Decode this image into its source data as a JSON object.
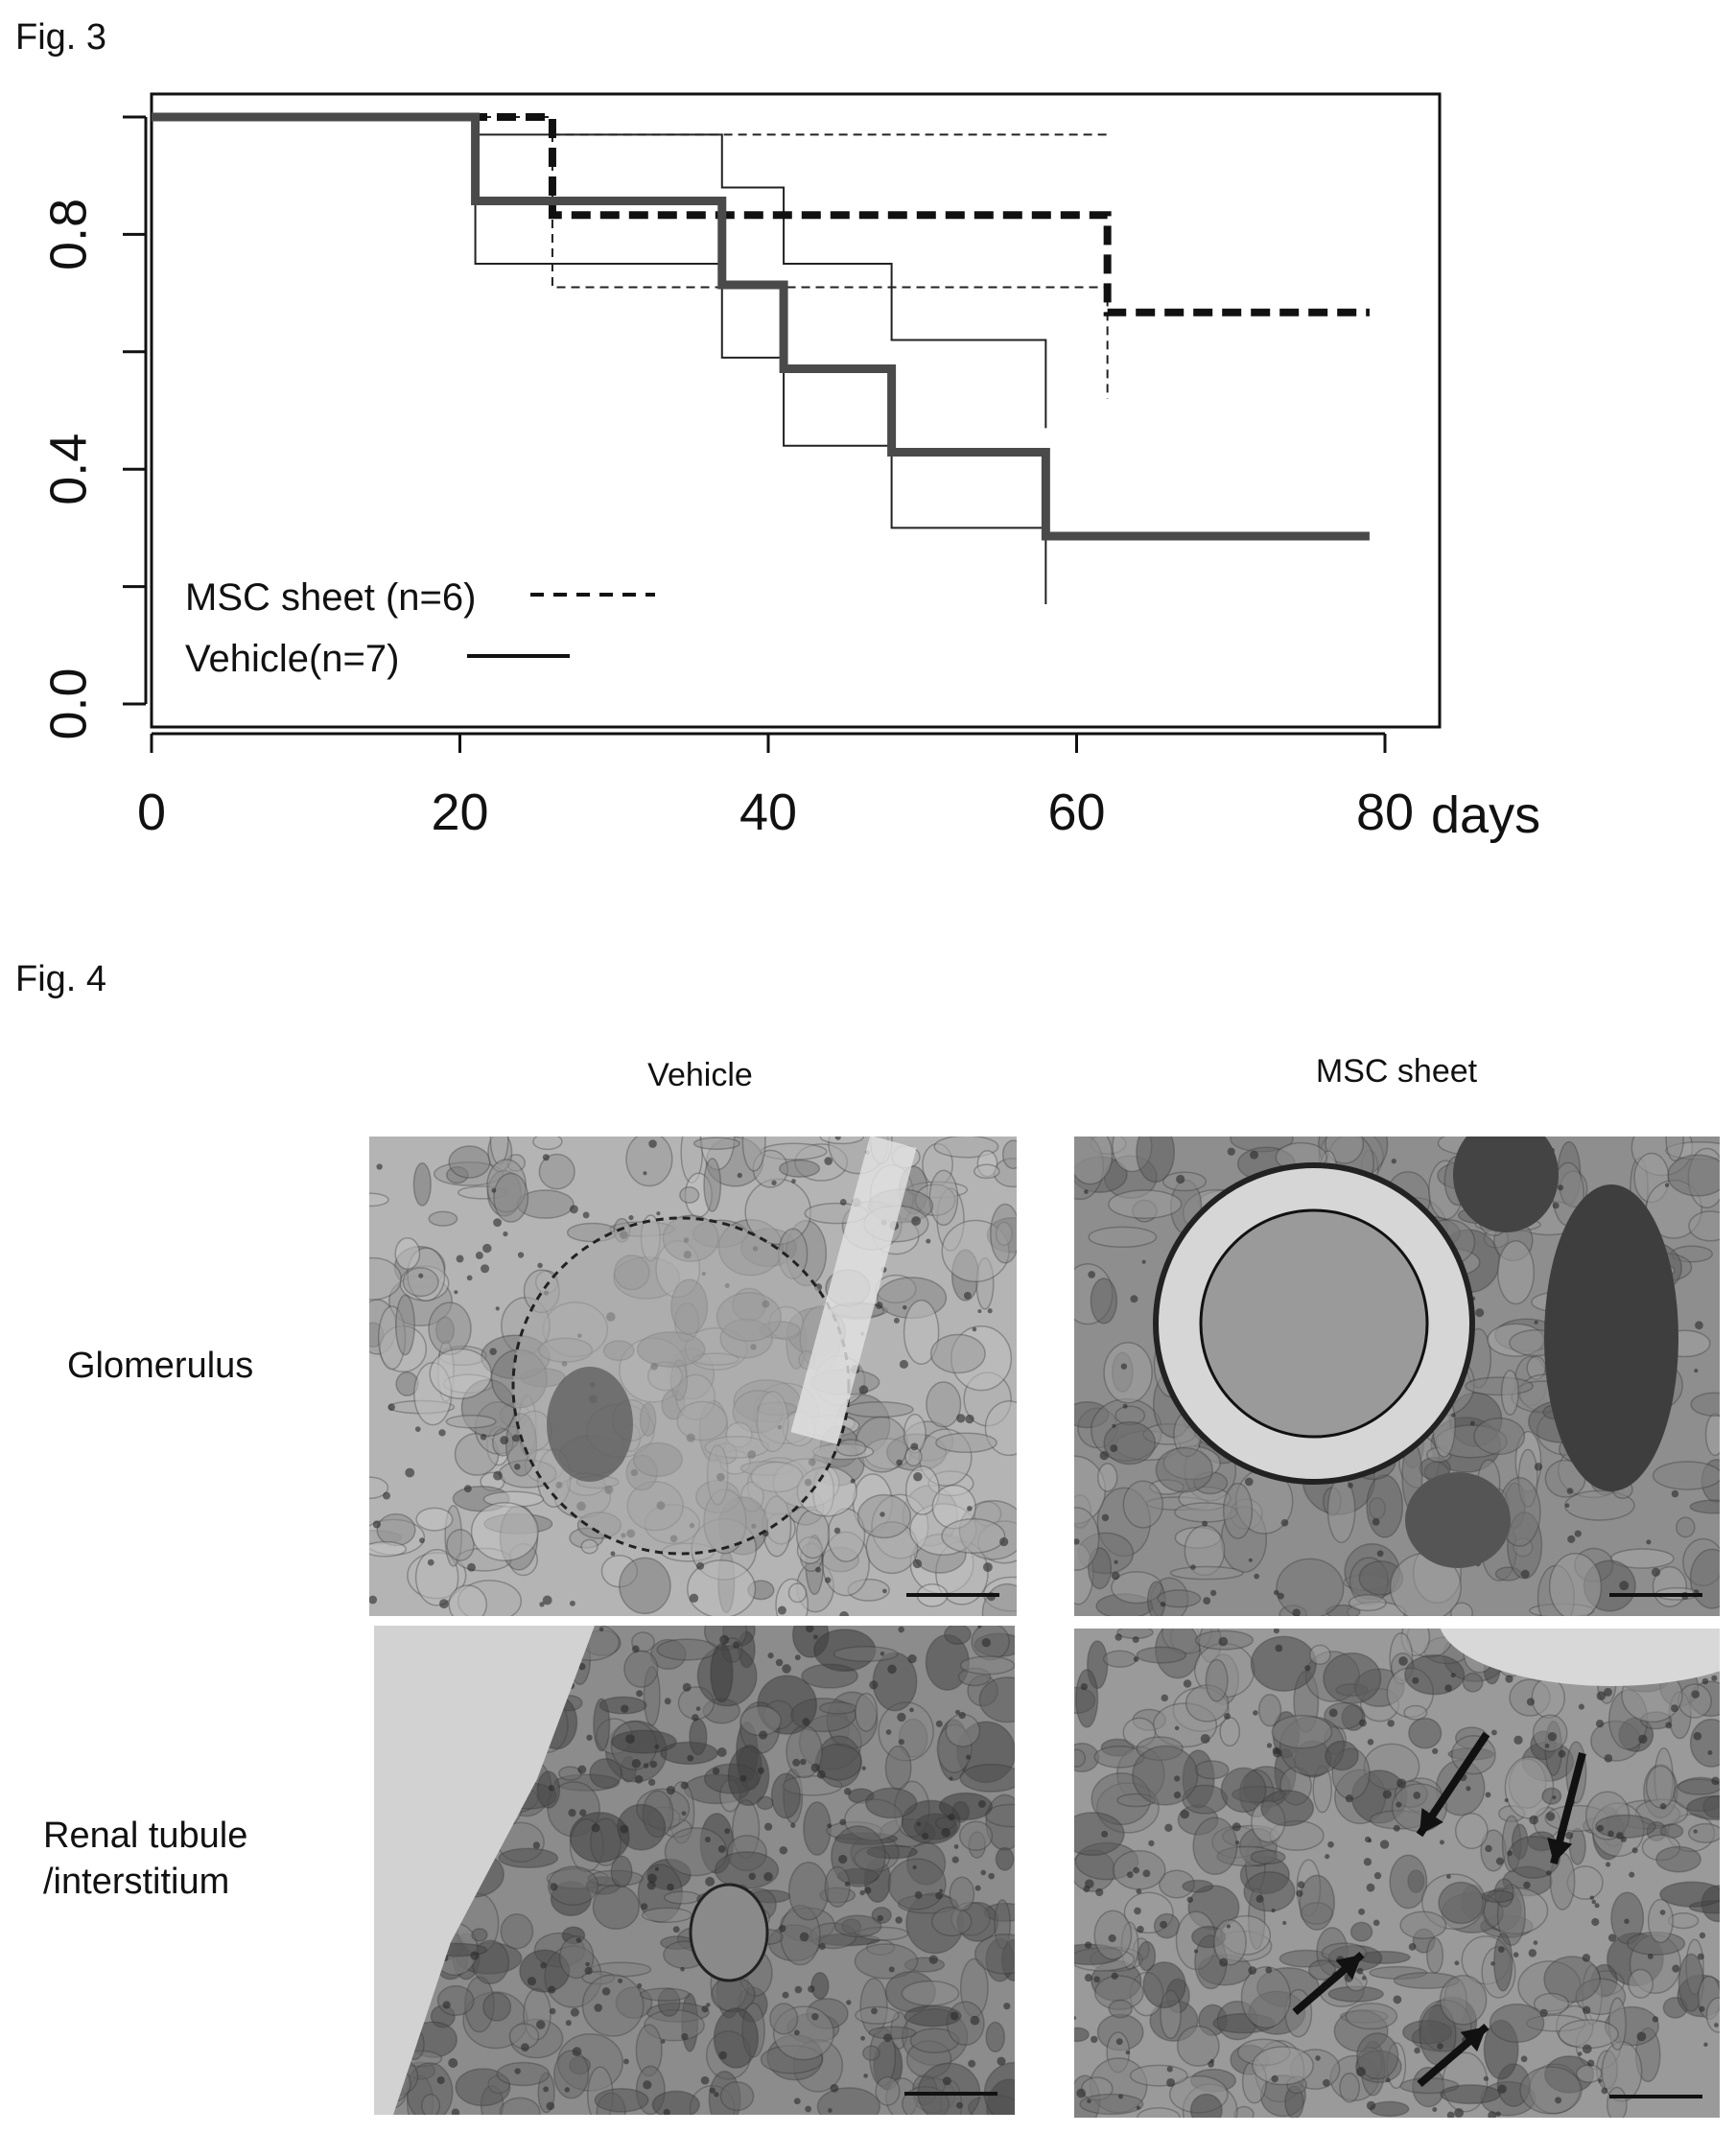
{
  "fig3": {
    "label": "Fig. 3"
  },
  "fig4": {
    "label": "Fig. 4",
    "columns": [
      "Vehicle",
      "MSC sheet"
    ],
    "rows": [
      "Glomerulus",
      "Renal tubule\n/interstitium"
    ]
  },
  "chart_data": {
    "type": "line",
    "subtype": "kaplan-meier step survival",
    "xlabel": "days",
    "ylabel": "",
    "xlim": [
      0,
      80
    ],
    "ylim": [
      0,
      1
    ],
    "xticks": [
      "0",
      "20",
      "40",
      "60",
      "80"
    ],
    "yticks": [
      "0.0",
      "0.4",
      "0.8"
    ],
    "grid": false,
    "legend_position": "bottom-left",
    "series": [
      {
        "name": "MSC sheet (n=6)",
        "style": "dashed-thick",
        "x": [
          0,
          26,
          62,
          79
        ],
        "y": [
          1.0,
          0.833,
          0.667,
          0.667
        ]
      },
      {
        "name": "Vehicle(n=7)",
        "style": "solid-thick",
        "x": [
          0,
          21,
          37,
          41,
          48,
          58,
          79
        ],
        "y": [
          1.0,
          0.857,
          0.714,
          0.571,
          0.429,
          0.286,
          0.286
        ]
      }
    ],
    "confidence_bands": [
      {
        "of": "MSC sheet (n=6)",
        "style": "dashed-thin",
        "upper": {
          "x": [
            0,
            26,
            62
          ],
          "y": [
            1.0,
            0.97,
            0.97
          ]
        },
        "lower": {
          "x": [
            0,
            26,
            62
          ],
          "y": [
            1.0,
            0.71,
            0.52
          ]
        }
      },
      {
        "of": "Vehicle(n=7)",
        "style": "solid-thin",
        "upper": {
          "x": [
            0,
            21,
            37,
            41,
            48,
            58
          ],
          "y": [
            1.0,
            0.97,
            0.88,
            0.75,
            0.62,
            0.47
          ]
        },
        "lower": {
          "x": [
            0,
            21,
            37,
            41,
            48,
            58
          ],
          "y": [
            1.0,
            0.75,
            0.59,
            0.44,
            0.3,
            0.17
          ]
        }
      }
    ]
  }
}
